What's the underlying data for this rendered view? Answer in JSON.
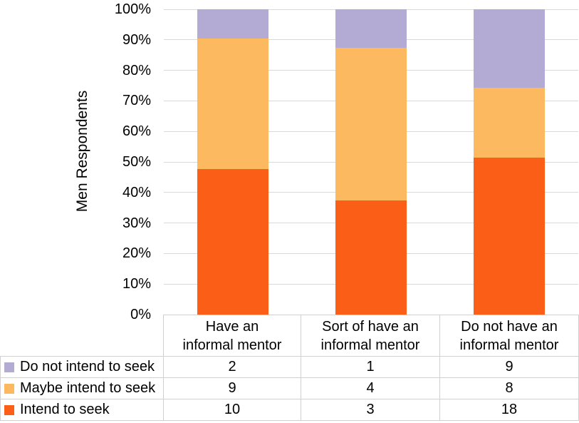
{
  "chart_data": {
    "type": "bar",
    "stacked": true,
    "percent_of_total": true,
    "title": "",
    "ylabel": "Men Respondents",
    "xlabel": "",
    "ylim": [
      0,
      100
    ],
    "grid": true,
    "legend_position": "bottom-table",
    "yticks": [
      "0%",
      "10%",
      "20%",
      "30%",
      "40%",
      "50%",
      "60%",
      "70%",
      "80%",
      "90%",
      "100%"
    ],
    "categories": [
      "Have an\ninformal mentor",
      "Sort of have an\ninformal mentor",
      "Do not have an\ninformal mentor"
    ],
    "series": [
      {
        "name": "Intend to seek",
        "color": "#FB5E17",
        "values": [
          10,
          3,
          18
        ]
      },
      {
        "name": "Maybe intend to seek",
        "color": "#FDB960",
        "values": [
          9,
          4,
          8
        ]
      },
      {
        "name": "Do not intend to seek",
        "color": "#B4ABD4",
        "values": [
          2,
          1,
          9
        ]
      }
    ],
    "colors": {
      "gridline": "#D9D9D9",
      "table_border": "#D0D0D0",
      "text": "#000000"
    }
  }
}
